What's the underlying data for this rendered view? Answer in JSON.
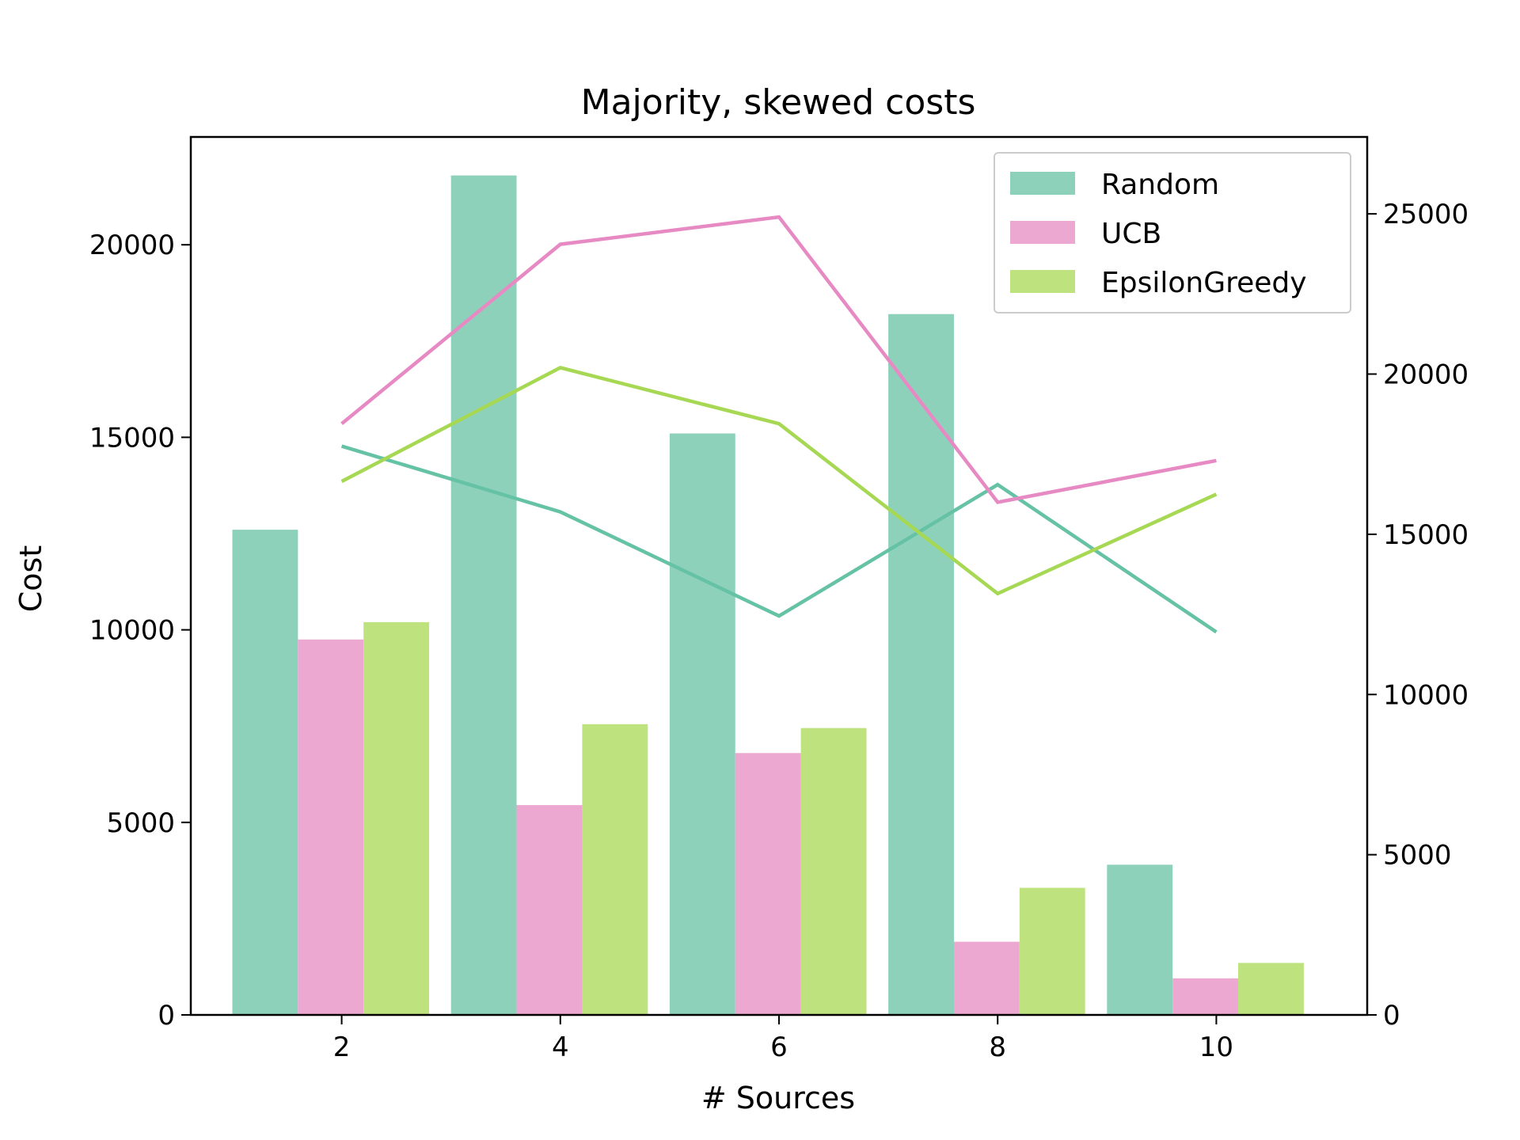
{
  "chart_data": {
    "type": "bar",
    "title": "Majority, skewed costs",
    "xlabel": "# Sources",
    "ylabel": "Cost",
    "y2label": "",
    "categories": [
      2,
      4,
      6,
      8,
      10
    ],
    "xticks": [
      2,
      4,
      6,
      8,
      10
    ],
    "ylim": [
      0,
      22800
    ],
    "yticks": [
      0,
      5000,
      10000,
      15000,
      20000
    ],
    "y2lim": [
      0,
      27400
    ],
    "y2ticks": [
      0,
      5000,
      10000,
      15000,
      20000,
      25000
    ],
    "series": [
      {
        "name": "Random",
        "values": [
          12600,
          21800,
          15100,
          18200,
          3900
        ],
        "color": "#8dd1bb"
      },
      {
        "name": "UCB",
        "values": [
          9750,
          5450,
          6800,
          1900,
          950
        ],
        "color": "#eda8d2"
      },
      {
        "name": "EpsilonGreedy",
        "values": [
          10200,
          7550,
          7450,
          3300,
          1350
        ],
        "color": "#bde27e"
      }
    ],
    "lines": [
      {
        "name": "Random",
        "axis": "right",
        "values": [
          17750,
          15700,
          12450,
          16550,
          11950
        ],
        "color": "#66c2a5"
      },
      {
        "name": "UCB",
        "axis": "right",
        "values": [
          18450,
          24050,
          24900,
          16000,
          17300
        ],
        "color": "#e78ac3"
      },
      {
        "name": "EpsilonGreedy",
        "axis": "right",
        "values": [
          16650,
          20200,
          18450,
          13150,
          16250
        ],
        "color": "#a6d854"
      }
    ],
    "legend": {
      "placement": "top-right",
      "entries": [
        "Random",
        "UCB",
        "EpsilonGreedy"
      ]
    },
    "grid": false
  }
}
